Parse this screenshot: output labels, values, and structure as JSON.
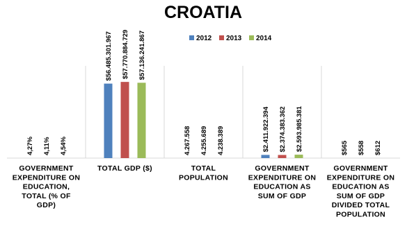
{
  "chart_data": {
    "type": "bar",
    "title": "CROATIA",
    "legend_position": "top",
    "colors": {
      "2012": "#4f81bd",
      "2013": "#c0504d",
      "2014": "#9bbb59"
    },
    "series": [
      {
        "name": "2012",
        "color": "#4f81bd"
      },
      {
        "name": "2013",
        "color": "#c0504d"
      },
      {
        "name": "2014",
        "color": "#9bbb59"
      }
    ],
    "categories": [
      {
        "label_lines": [
          "GOVERNMENT",
          "EXPENDITURE ON",
          "EDUCATION,",
          "TOTAL (% OF",
          "GDP)"
        ],
        "values": [
          4.27,
          4.11,
          4.54
        ],
        "labels": [
          "4,27%",
          "4,11%",
          "4,54%"
        ]
      },
      {
        "label_lines": [
          "TOTAL GDP ($)"
        ],
        "values": [
          56485301967,
          57770884729,
          57136241867
        ],
        "labels": [
          "$56.485.301.967",
          "$57.770.884.729",
          "$57.136.241.867"
        ]
      },
      {
        "label_lines": [
          "TOTAL",
          "POPULATION"
        ],
        "values": [
          4267558,
          4255689,
          4238389
        ],
        "labels": [
          "4.267.558",
          "4.255.689",
          "4.238.389"
        ]
      },
      {
        "label_lines": [
          "GOVERNMENT",
          "EXPENDITURE ON",
          "EDUCATION AS",
          "SUM OF GDP"
        ],
        "values": [
          2411922394,
          2374383362,
          2593985381
        ],
        "labels": [
          "$2.411.922.394",
          "$2.374.383.362",
          "$2.593.985.381"
        ]
      },
      {
        "label_lines": [
          "GOVERNMENT",
          "EXPENDITURE ON",
          "EDUCATION AS",
          "SUM OF GDP",
          "DIVIDED TOTAL",
          "POPULATION"
        ],
        "values": [
          565,
          558,
          612
        ],
        "labels": [
          "$565",
          "$558",
          "$612"
        ]
      }
    ],
    "ylim": [
      0,
      61000000000
    ],
    "grid": false
  }
}
